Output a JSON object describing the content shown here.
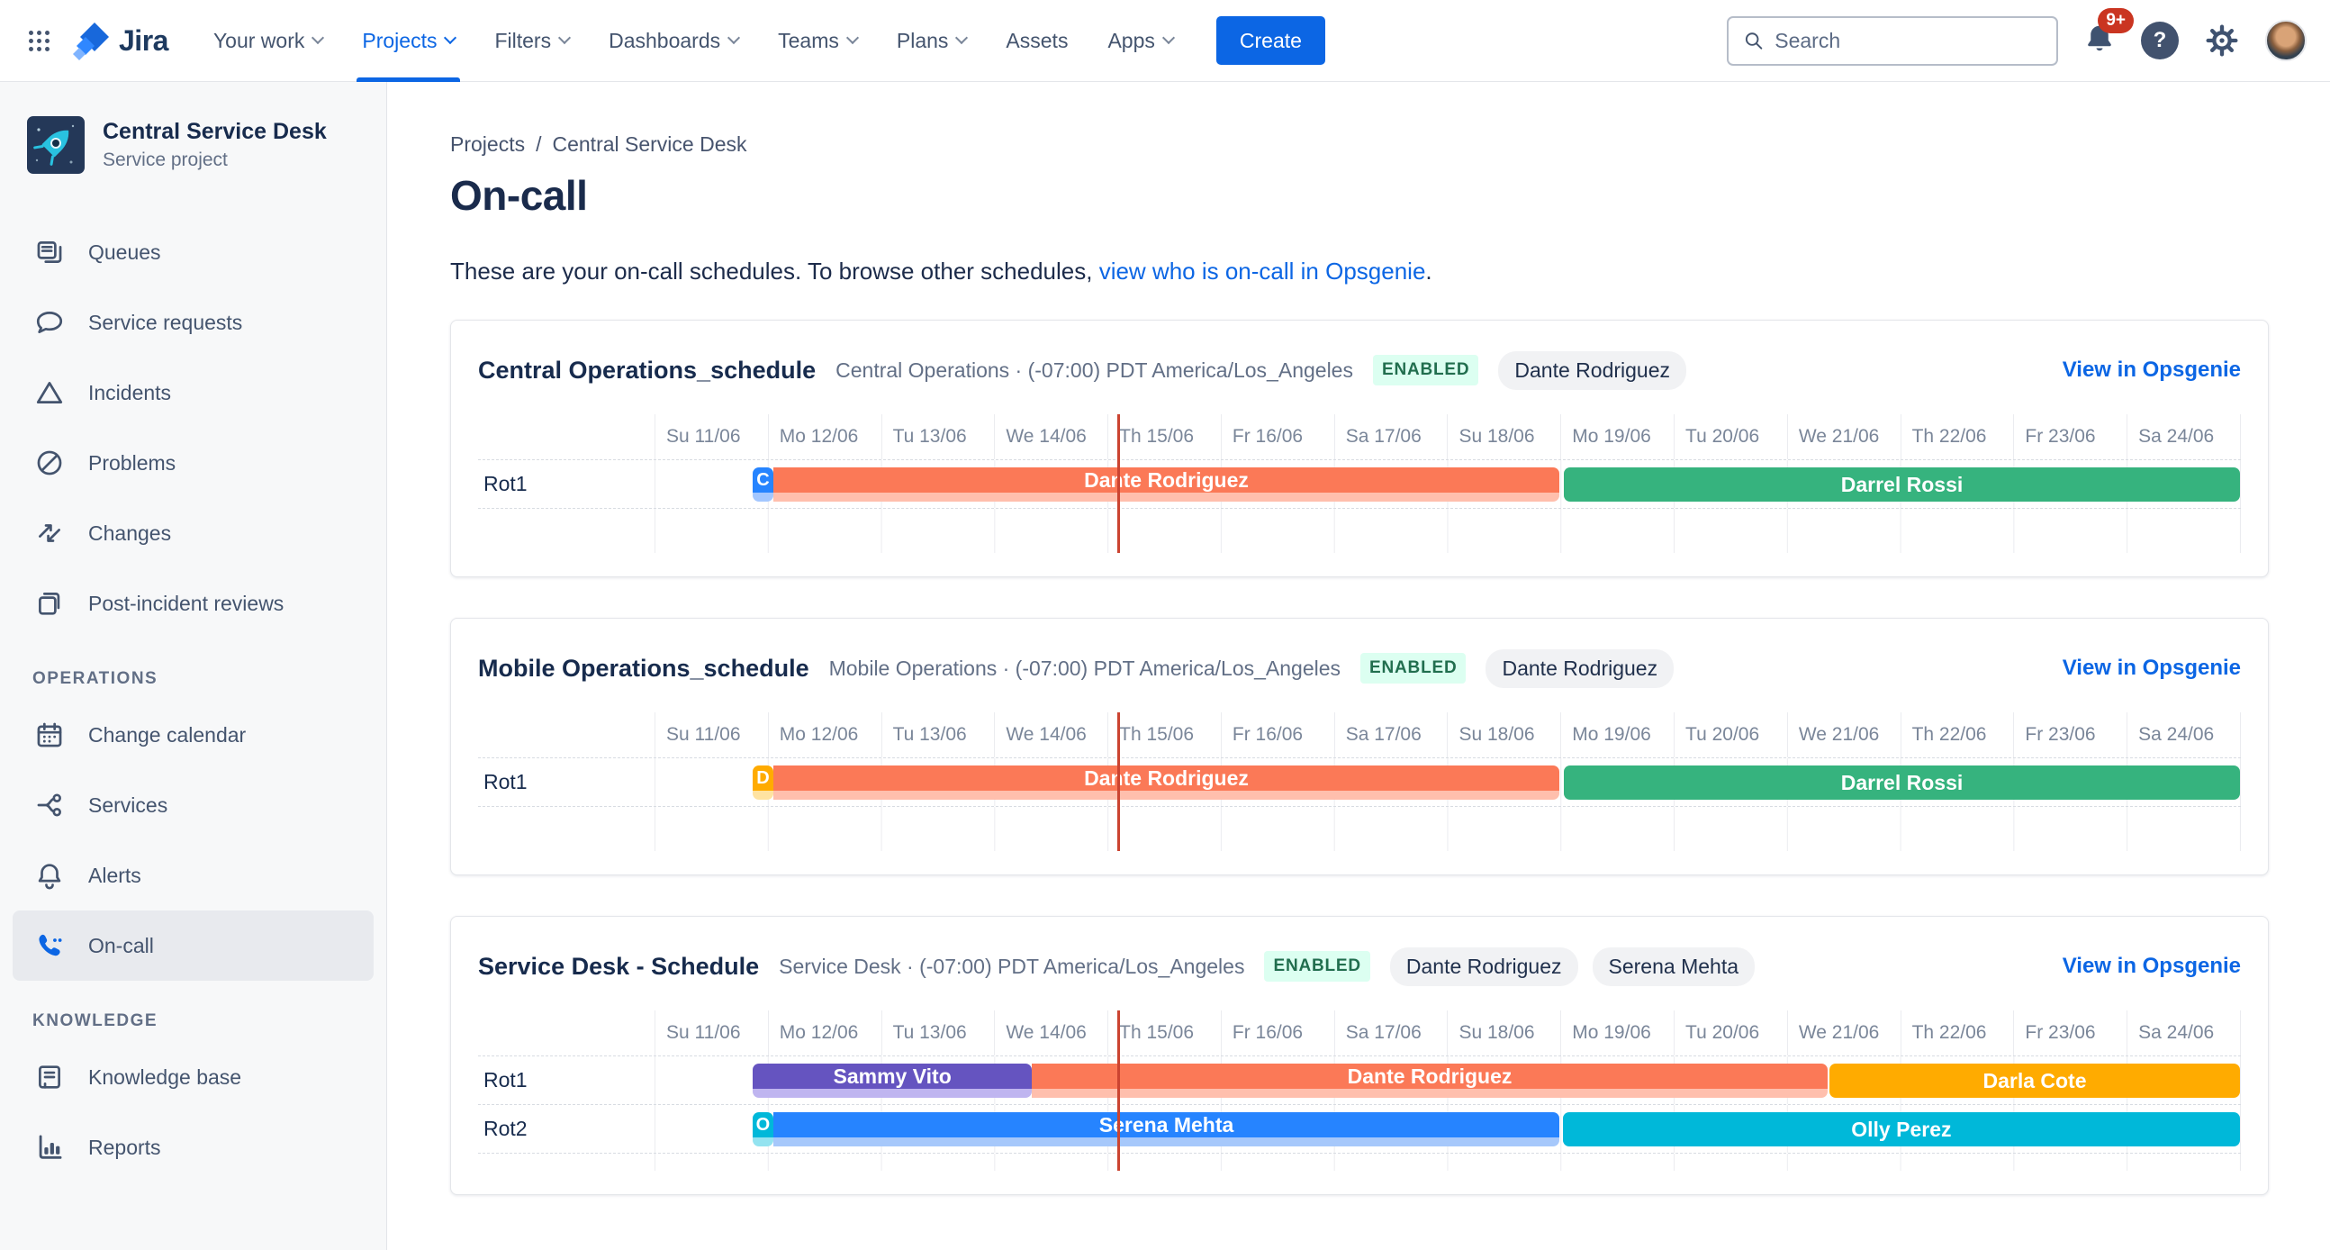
{
  "nav": {
    "logo_label": "Jira",
    "items": [
      {
        "label": "Your work",
        "chevron": true
      },
      {
        "label": "Projects",
        "chevron": true,
        "active": true
      },
      {
        "label": "Filters",
        "chevron": true
      },
      {
        "label": "Dashboards",
        "chevron": true
      },
      {
        "label": "Teams",
        "chevron": true
      },
      {
        "label": "Plans",
        "chevron": true
      },
      {
        "label": "Assets",
        "chevron": false
      },
      {
        "label": "Apps",
        "chevron": true
      }
    ],
    "create_label": "Create",
    "search_placeholder": "Search",
    "notification_count": "9+",
    "help_glyph": "?"
  },
  "sidebar": {
    "project": {
      "name": "Central Service Desk",
      "type": "Service project"
    },
    "groups": [
      {
        "title": "",
        "items": [
          {
            "label": "Queues",
            "icon": "queues"
          },
          {
            "label": "Service requests",
            "icon": "service-requests"
          },
          {
            "label": "Incidents",
            "icon": "incidents"
          },
          {
            "label": "Problems",
            "icon": "problems"
          },
          {
            "label": "Changes",
            "icon": "changes"
          },
          {
            "label": "Post-incident reviews",
            "icon": "post-incident-reviews"
          }
        ]
      },
      {
        "title": "OPERATIONS",
        "items": [
          {
            "label": "Change calendar",
            "icon": "change-calendar"
          },
          {
            "label": "Services",
            "icon": "services"
          },
          {
            "label": "Alerts",
            "icon": "alerts"
          },
          {
            "label": "On-call",
            "icon": "on-call",
            "selected": true
          }
        ]
      },
      {
        "title": "KNOWLEDGE",
        "items": [
          {
            "label": "Knowledge base",
            "icon": "knowledge-base"
          },
          {
            "label": "Reports",
            "icon": "reports"
          }
        ]
      }
    ]
  },
  "main": {
    "breadcrumb": [
      "Projects",
      "Central Service Desk"
    ],
    "title": "On-call",
    "description_prefix": "These are your on-call schedules. To browse other schedules, ",
    "description_link": "view who is on-call in Opsgenie",
    "description_suffix": "."
  },
  "timeline": {
    "total_days": 14,
    "now_day": 4.087,
    "days": [
      "Su 11/06",
      "Mo 12/06",
      "Tu 13/06",
      "We 14/06",
      "Th 15/06",
      "Fr 16/06",
      "Sa 17/06",
      "Su 18/06",
      "Mo 19/06",
      "Tu 20/06",
      "We 21/06",
      "Th 22/06",
      "Fr 23/06",
      "Sa 24/06"
    ]
  },
  "colors": {
    "accent_blue": "#0C66E4",
    "now_line": "#CB4431",
    "enabled_bg": "#DCFFF1",
    "enabled_text": "#216E4E"
  },
  "schedules": [
    {
      "name": "Central Operations_schedule",
      "meta": "Central Operations · (-07:00) PDT America/Los_Angeles",
      "status": "ENABLED",
      "responders": [
        "Dante Rodriguez"
      ],
      "link_label": "View in Opsgenie",
      "trailing_row_height": 50,
      "rotations": [
        {
          "label": "Rot1",
          "bars": [
            {
              "letter": "C",
              "color": "#2684FF",
              "light": "#A3C7FF",
              "start": 0.865,
              "end": 1.05
            },
            {
              "label": "Dante Rodriguez",
              "color": "#FB7957",
              "light": "#FFBFAD",
              "start": 1.05,
              "end": 7.99,
              "flat_left": true
            },
            {
              "label": "Darrel Rossi",
              "color": "#36B37E",
              "start": 8.03,
              "end": 14
            }
          ]
        }
      ]
    },
    {
      "name": "Mobile Operations_schedule",
      "meta": "Mobile Operations · (-07:00) PDT America/Los_Angeles",
      "status": "ENABLED",
      "responders": [
        "Dante Rodriguez"
      ],
      "link_label": "View in Opsgenie",
      "trailing_row_height": 50,
      "rotations": [
        {
          "label": "Rot1",
          "bars": [
            {
              "letter": "D",
              "color": "#FFAB00",
              "light": "#FFE3A1",
              "start": 0.865,
              "end": 1.05
            },
            {
              "label": "Dante Rodriguez",
              "color": "#FB7957",
              "light": "#FFBFAD",
              "start": 1.05,
              "end": 7.99,
              "flat_left": true
            },
            {
              "label": "Darrel Rossi",
              "color": "#36B37E",
              "start": 8.03,
              "end": 14
            }
          ]
        }
      ]
    },
    {
      "name": "Service Desk - Schedule",
      "meta": "Service Desk · (-07:00) PDT America/Los_Angeles",
      "status": "ENABLED",
      "responders": [
        "Dante Rodriguez",
        "Serena Mehta"
      ],
      "link_label": "View in Opsgenie",
      "trailing_row_height": 20,
      "rotations": [
        {
          "label": "Rot1",
          "bars": [
            {
              "label": "Sammy Vito",
              "color": "#6554C0",
              "light": "#BFB5F0",
              "start": 0.865,
              "end": 3.335
            },
            {
              "label": "Dante Rodriguez",
              "color": "#FB7957",
              "light": "#FFBFAD",
              "start": 3.335,
              "end": 10.355,
              "flat_left": true
            },
            {
              "label": "Darla Cote",
              "color": "#FFAB00",
              "start": 10.375,
              "end": 14
            }
          ]
        },
        {
          "label": "Rot2",
          "bars": [
            {
              "letter": "O",
              "color": "#00B8D9",
              "light": "#93E3F0",
              "start": 0.865,
              "end": 1.05
            },
            {
              "label": "Serena Mehta",
              "color": "#2684FF",
              "light": "#A6C8FB",
              "start": 1.05,
              "end": 7.99,
              "flat_left": true
            },
            {
              "label": "Olly Perez",
              "color": "#00B8D9",
              "start": 8.02,
              "end": 14
            }
          ]
        }
      ]
    }
  ]
}
